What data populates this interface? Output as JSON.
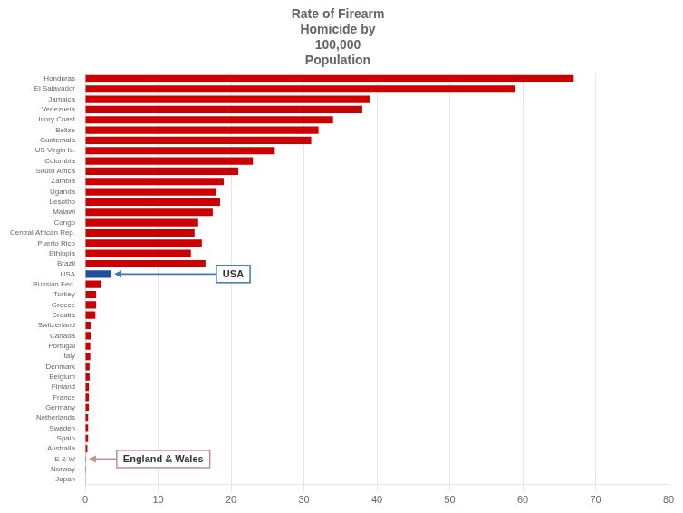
{
  "chart_data": {
    "type": "bar",
    "orientation": "horizontal",
    "title": [
      "Rate of Firearm",
      "Homicide by",
      "100,000",
      "Population"
    ],
    "categories": [
      "Honduras",
      "El Salavador",
      "Jamaica",
      "Venezuela",
      "Ivory Coast",
      "Belize",
      "Guatemala",
      "US Virgin Is.",
      "Colombia",
      "South Africa",
      "Zambia",
      "Uganda",
      "Lesotho",
      "Malawi",
      "Congo",
      "Central African Rep.",
      "Puerto Rico",
      "Ethiopia",
      "Brazil",
      "USA",
      "Russian Fed.",
      "Turkey",
      "Greece",
      "Croatia",
      "Switzerland",
      "Canada",
      "Portugal",
      "Italy",
      "Denmark",
      "Belgium",
      "Finland",
      "France",
      "Germany",
      "Netherlands",
      "Sweden",
      "Spain",
      "Australia",
      "E & W",
      "Norway",
      "Japan"
    ],
    "values": [
      67.0,
      59.0,
      39.0,
      38.0,
      34.0,
      32.0,
      31.0,
      26.0,
      23.0,
      21.0,
      19.0,
      18.0,
      18.5,
      17.5,
      15.5,
      15.0,
      16.0,
      14.5,
      16.5,
      3.6,
      2.2,
      1.5,
      1.5,
      1.4,
      0.8,
      0.8,
      0.7,
      0.7,
      0.6,
      0.6,
      0.5,
      0.5,
      0.5,
      0.4,
      0.4,
      0.4,
      0.3,
      0.1,
      0.1,
      0.06
    ],
    "colors": [
      "#cc0000",
      "#cc0000",
      "#cc0000",
      "#cc0000",
      "#cc0000",
      "#cc0000",
      "#cc0000",
      "#cc0000",
      "#cc0000",
      "#cc0000",
      "#cc0000",
      "#cc0000",
      "#cc0000",
      "#cc0000",
      "#cc0000",
      "#cc0000",
      "#cc0000",
      "#cc0000",
      "#cc0000",
      "#1f4e9e",
      "#cc0000",
      "#cc0000",
      "#cc0000",
      "#cc0000",
      "#cc0000",
      "#cc0000",
      "#cc0000",
      "#cc0000",
      "#cc0000",
      "#cc0000",
      "#cc0000",
      "#cc0000",
      "#cc0000",
      "#cc0000",
      "#cc0000",
      "#cc0000",
      "#cc0000",
      "#cc0000",
      "#cc0000",
      "#cc0000"
    ],
    "xlim": [
      0,
      80
    ],
    "xticks": [
      0,
      10,
      20,
      30,
      40,
      50,
      60,
      70,
      80
    ],
    "grid": true,
    "annotations": [
      {
        "text": "USA",
        "category": "USA",
        "color": "#4472c4"
      },
      {
        "text": "England & Wales",
        "category": "E & W",
        "color": "#c09090"
      }
    ]
  }
}
